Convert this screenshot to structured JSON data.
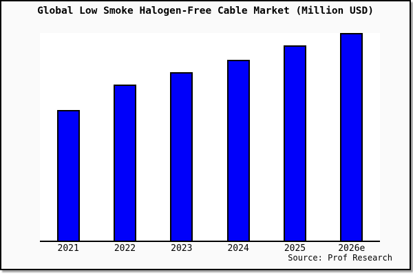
{
  "chart_data": {
    "type": "bar",
    "title": "Global Low Smoke Halogen-Free Cable Market (Million USD)",
    "categories": [
      "2021",
      "2022",
      "2023",
      "2024",
      "2025",
      "2026e"
    ],
    "values": [
      63,
      75,
      81,
      87,
      94,
      100
    ],
    "value_scale": "relative units; chart shows no y-axis ticks or labels, tallest bar (2026e) = 100",
    "xlabel": "",
    "ylabel": "",
    "ylim": [
      0,
      100
    ],
    "grid": false,
    "legend": false,
    "y_axis_visible": false,
    "source": "Source: Prof Research",
    "colors": {
      "bar_fill": "#0000fa",
      "bar_border": "#000000",
      "plot_background": "#ffffff",
      "figure_background": "#fafafa",
      "axis_line": "#000000",
      "text": "#000000"
    }
  }
}
